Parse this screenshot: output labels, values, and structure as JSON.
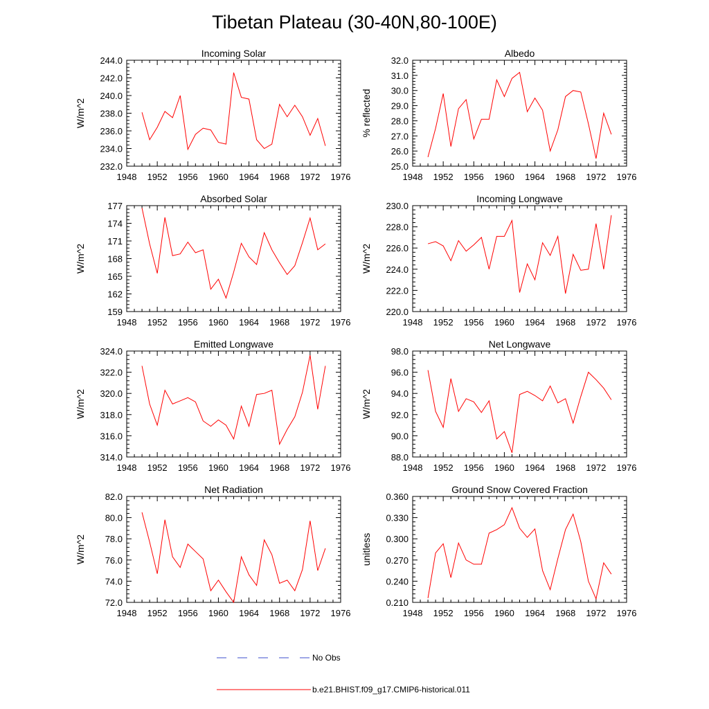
{
  "figure": {
    "title": "Tibetan Plateau (30-40N,80-100E)",
    "colors": {
      "model": "#ff0000",
      "obs": "#3c4ccc",
      "axis": "#000000"
    },
    "legend": {
      "placement": "bottom",
      "entries": [
        {
          "label": "No Obs",
          "style": "dashed",
          "color": "#3c4ccc"
        },
        {
          "label": "b.e21.BHIST.f09_g17.CMIP6-historical.011",
          "style": "solid",
          "color": "#ff0000"
        }
      ]
    }
  },
  "chart_data": [
    {
      "type": "line",
      "title": "Incoming Solar",
      "xlabel": "",
      "ylabel": "W/m^2",
      "xlim": [
        1948,
        1976
      ],
      "ylim": [
        232,
        244
      ],
      "decimals": 1,
      "xticks": [
        1948,
        1952,
        1956,
        1960,
        1964,
        1968,
        1972,
        1976
      ],
      "yticks": [
        232,
        234,
        236,
        238,
        240,
        242,
        244
      ],
      "x": [
        1950,
        1951,
        1952,
        1953,
        1954,
        1955,
        1956,
        1957,
        1958,
        1959,
        1960,
        1961,
        1962,
        1963,
        1964,
        1965,
        1966,
        1967,
        1968,
        1969,
        1970,
        1971,
        1972,
        1973,
        1974
      ],
      "series": [
        {
          "name": "b.e21.BHIST.f09_g17.CMIP6-historical.011",
          "values": [
            238.1,
            235.0,
            236.4,
            238.2,
            237.5,
            240.0,
            233.9,
            235.6,
            236.3,
            236.1,
            234.7,
            234.5,
            242.6,
            239.8,
            239.6,
            235.0,
            234.0,
            234.5,
            239.0,
            237.6,
            238.9,
            237.6,
            235.5,
            237.4,
            234.3
          ]
        }
      ]
    },
    {
      "type": "line",
      "title": "Albedo",
      "xlabel": "",
      "ylabel": "% reflected",
      "xlim": [
        1948,
        1976
      ],
      "ylim": [
        25,
        32
      ],
      "decimals": 1,
      "xticks": [
        1948,
        1952,
        1956,
        1960,
        1964,
        1968,
        1972,
        1976
      ],
      "yticks": [
        25,
        26,
        27,
        28,
        29,
        30,
        31,
        32
      ],
      "x": [
        1950,
        1951,
        1952,
        1953,
        1954,
        1955,
        1956,
        1957,
        1958,
        1959,
        1960,
        1961,
        1962,
        1963,
        1964,
        1965,
        1966,
        1967,
        1968,
        1969,
        1970,
        1971,
        1972,
        1973,
        1974
      ],
      "series": [
        {
          "name": "b.e21.BHIST.f09_g17.CMIP6-historical.011",
          "values": [
            25.6,
            27.5,
            29.8,
            26.3,
            28.8,
            29.4,
            26.8,
            28.1,
            28.1,
            30.7,
            29.6,
            30.8,
            31.2,
            28.6,
            29.5,
            28.7,
            26.0,
            27.4,
            29.6,
            30.0,
            29.9,
            27.8,
            25.5,
            28.5,
            27.1
          ]
        }
      ]
    },
    {
      "type": "line",
      "title": "Absorbed Solar",
      "xlabel": "",
      "ylabel": "W/m^2",
      "xlim": [
        1948,
        1976
      ],
      "ylim": [
        159,
        177
      ],
      "decimals": 0,
      "xticks": [
        1948,
        1952,
        1956,
        1960,
        1964,
        1968,
        1972,
        1976
      ],
      "yticks": [
        159,
        162,
        165,
        168,
        171,
        174,
        177
      ],
      "x": [
        1950,
        1951,
        1952,
        1953,
        1954,
        1955,
        1956,
        1957,
        1958,
        1959,
        1960,
        1961,
        1962,
        1963,
        1964,
        1965,
        1966,
        1967,
        1968,
        1969,
        1970,
        1971,
        1972,
        1973,
        1974
      ],
      "series": [
        {
          "name": "b.e21.BHIST.f09_g17.CMIP6-historical.011",
          "values": [
            176.6,
            170.5,
            165.5,
            175.0,
            168.5,
            168.8,
            170.8,
            169.0,
            169.5,
            162.8,
            164.5,
            161.3,
            165.7,
            170.6,
            168.3,
            167.0,
            172.4,
            169.5,
            167.3,
            165.3,
            166.8,
            170.7,
            174.9,
            169.5,
            170.5
          ]
        }
      ]
    },
    {
      "type": "line",
      "title": "Incoming Longwave",
      "xlabel": "",
      "ylabel": "W/m^2",
      "xlim": [
        1948,
        1976
      ],
      "ylim": [
        220,
        230
      ],
      "decimals": 1,
      "xticks": [
        1948,
        1952,
        1956,
        1960,
        1964,
        1968,
        1972,
        1976
      ],
      "yticks": [
        220,
        222,
        224,
        226,
        228,
        230
      ],
      "x": [
        1950,
        1951,
        1952,
        1953,
        1954,
        1955,
        1956,
        1957,
        1958,
        1959,
        1960,
        1961,
        1962,
        1963,
        1964,
        1965,
        1966,
        1967,
        1968,
        1969,
        1970,
        1971,
        1972,
        1973,
        1974
      ],
      "series": [
        {
          "name": "b.e21.BHIST.f09_g17.CMIP6-historical.011",
          "values": [
            226.4,
            226.6,
            226.2,
            224.8,
            226.7,
            225.7,
            226.3,
            227.0,
            224.0,
            227.1,
            227.1,
            228.6,
            221.8,
            224.5,
            223.0,
            226.5,
            225.3,
            227.1,
            221.7,
            225.4,
            223.9,
            224.0,
            228.3,
            224.0,
            229.1
          ]
        }
      ]
    },
    {
      "type": "line",
      "title": "Emitted Longwave",
      "xlabel": "",
      "ylabel": "W/m^2",
      "xlim": [
        1948,
        1976
      ],
      "ylim": [
        314,
        324
      ],
      "decimals": 1,
      "xticks": [
        1948,
        1952,
        1956,
        1960,
        1964,
        1968,
        1972,
        1976
      ],
      "yticks": [
        314,
        316,
        318,
        320,
        322,
        324
      ],
      "x": [
        1950,
        1951,
        1952,
        1953,
        1954,
        1955,
        1956,
        1957,
        1958,
        1959,
        1960,
        1961,
        1962,
        1963,
        1964,
        1965,
        1966,
        1967,
        1968,
        1969,
        1970,
        1971,
        1972,
        1973,
        1974
      ],
      "series": [
        {
          "name": "b.e21.BHIST.f09_g17.CMIP6-historical.011",
          "values": [
            322.6,
            319.0,
            317.0,
            320.3,
            319.0,
            319.3,
            319.6,
            319.2,
            317.4,
            316.9,
            317.5,
            317.0,
            315.7,
            318.8,
            316.9,
            319.9,
            320.0,
            320.3,
            315.2,
            316.6,
            317.8,
            320.1,
            323.6,
            318.5,
            322.6
          ]
        }
      ]
    },
    {
      "type": "line",
      "title": "Net Longwave",
      "xlabel": "",
      "ylabel": "W/m^2",
      "xlim": [
        1948,
        1976
      ],
      "ylim": [
        88,
        98
      ],
      "decimals": 1,
      "xticks": [
        1948,
        1952,
        1956,
        1960,
        1964,
        1968,
        1972,
        1976
      ],
      "yticks": [
        88,
        90,
        92,
        94,
        96,
        98
      ],
      "x": [
        1950,
        1951,
        1952,
        1953,
        1954,
        1955,
        1956,
        1957,
        1958,
        1959,
        1960,
        1961,
        1962,
        1963,
        1964,
        1965,
        1966,
        1967,
        1968,
        1969,
        1970,
        1971,
        1972,
        1973,
        1974
      ],
      "series": [
        {
          "name": "b.e21.BHIST.f09_g17.CMIP6-historical.011",
          "values": [
            96.2,
            92.3,
            90.8,
            95.4,
            92.3,
            93.5,
            93.2,
            92.2,
            93.3,
            89.7,
            90.4,
            88.4,
            93.9,
            94.2,
            93.8,
            93.3,
            94.7,
            93.1,
            93.5,
            91.2,
            93.7,
            96.0,
            95.3,
            94.5,
            93.4
          ]
        }
      ]
    },
    {
      "type": "line",
      "title": "Net Radiation",
      "xlabel": "",
      "ylabel": "W/m^2",
      "xlim": [
        1948,
        1976
      ],
      "ylim": [
        72,
        82
      ],
      "decimals": 1,
      "xticks": [
        1948,
        1952,
        1956,
        1960,
        1964,
        1968,
        1972,
        1976
      ],
      "yticks": [
        72,
        74,
        76,
        78,
        80,
        82
      ],
      "x": [
        1950,
        1951,
        1952,
        1953,
        1954,
        1955,
        1956,
        1957,
        1958,
        1959,
        1960,
        1961,
        1962,
        1963,
        1964,
        1965,
        1966,
        1967,
        1968,
        1969,
        1970,
        1971,
        1972,
        1973,
        1974
      ],
      "series": [
        {
          "name": "b.e21.BHIST.f09_g17.CMIP6-historical.011",
          "values": [
            80.5,
            77.7,
            74.7,
            79.8,
            76.3,
            75.3,
            77.5,
            76.8,
            76.1,
            73.1,
            74.1,
            73.0,
            72.0,
            76.3,
            74.6,
            73.6,
            77.9,
            76.5,
            73.8,
            74.1,
            73.1,
            75.1,
            79.7,
            75.0,
            77.1
          ]
        }
      ]
    },
    {
      "type": "line",
      "title": "Ground Snow Covered Fraction",
      "xlabel": "",
      "ylabel": "unitless",
      "xlim": [
        1948,
        1976
      ],
      "ylim": [
        0.21,
        0.36
      ],
      "decimals": 3,
      "xticks": [
        1948,
        1952,
        1956,
        1960,
        1964,
        1968,
        1972,
        1976
      ],
      "yticks": [
        0.21,
        0.24,
        0.27,
        0.3,
        0.33,
        0.36
      ],
      "x": [
        1950,
        1951,
        1952,
        1953,
        1954,
        1955,
        1956,
        1957,
        1958,
        1959,
        1960,
        1961,
        1962,
        1963,
        1964,
        1965,
        1966,
        1967,
        1968,
        1969,
        1970,
        1971,
        1972,
        1973,
        1974
      ],
      "series": [
        {
          "name": "b.e21.BHIST.f09_g17.CMIP6-historical.011",
          "values": [
            0.216,
            0.28,
            0.293,
            0.245,
            0.294,
            0.27,
            0.264,
            0.264,
            0.308,
            0.313,
            0.32,
            0.344,
            0.315,
            0.302,
            0.314,
            0.255,
            0.228,
            0.272,
            0.313,
            0.335,
            0.296,
            0.24,
            0.215,
            0.266,
            0.25
          ]
        }
      ]
    }
  ]
}
